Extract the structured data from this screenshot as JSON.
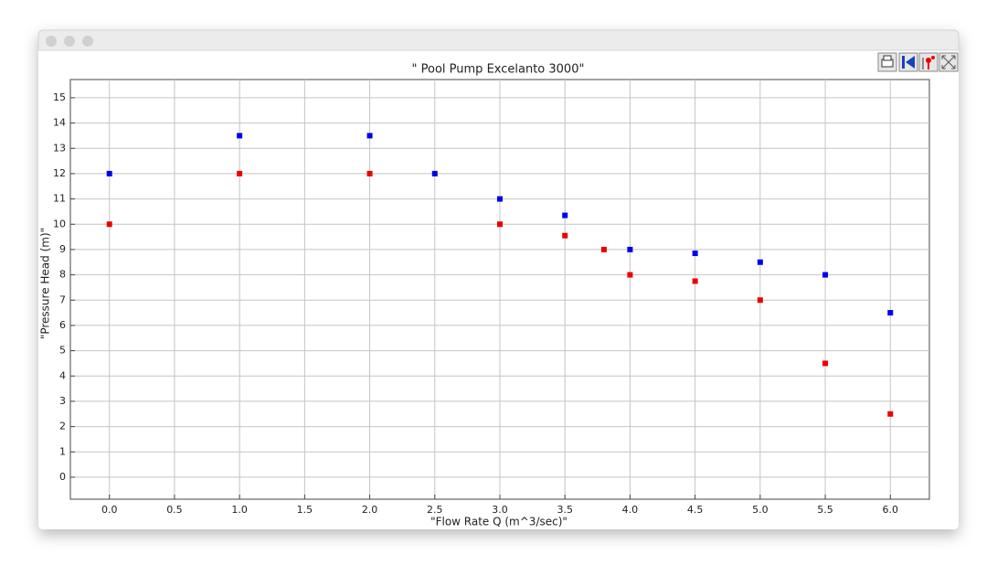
{
  "chart_data": {
    "type": "scatter",
    "title": "\" Pool Pump Excelanto 3000\"",
    "x_label": "\"Flow Rate Q (m^3/sec)\"",
    "y_label": "\"Pressure Head (m)\"",
    "xlim": [
      -0.3,
      6.3
    ],
    "ylim": [
      -0.87,
      15.72
    ],
    "xticks": [
      {
        "value": 0,
        "label": "0.0"
      },
      0.5,
      {
        "value": 1,
        "label": "1.0"
      },
      1.5,
      {
        "value": 2,
        "label": "2.0"
      },
      2.5,
      {
        "value": 3,
        "label": "3.0"
      },
      3.5,
      {
        "value": 4,
        "label": "4.0"
      },
      4.5,
      {
        "value": 5,
        "label": "5.0"
      },
      5.5,
      {
        "value": 6,
        "label": "6.0"
      }
    ],
    "yticks": [
      0,
      1,
      2,
      3,
      4,
      5,
      6,
      7,
      8,
      9,
      10,
      11,
      12,
      13,
      14,
      15
    ],
    "grid": true,
    "series": [
      {
        "color": "#0000ee",
        "x": [
          0,
          1,
          2,
          2.5,
          3,
          3.5,
          4,
          4.5,
          5,
          5.5,
          6
        ],
        "values": [
          12,
          13.5,
          13.5,
          12,
          11,
          10.35,
          9,
          8.85,
          8.5,
          8,
          6.5
        ]
      },
      {
        "color": "#ee0000",
        "x": [
          0,
          1,
          2,
          3,
          3.5,
          3.8,
          4,
          4.5,
          5,
          5.5,
          6
        ],
        "values": [
          10,
          12,
          12,
          10,
          9.55,
          9,
          8,
          7.75,
          7,
          4.5,
          2.5
        ]
      }
    ]
  }
}
